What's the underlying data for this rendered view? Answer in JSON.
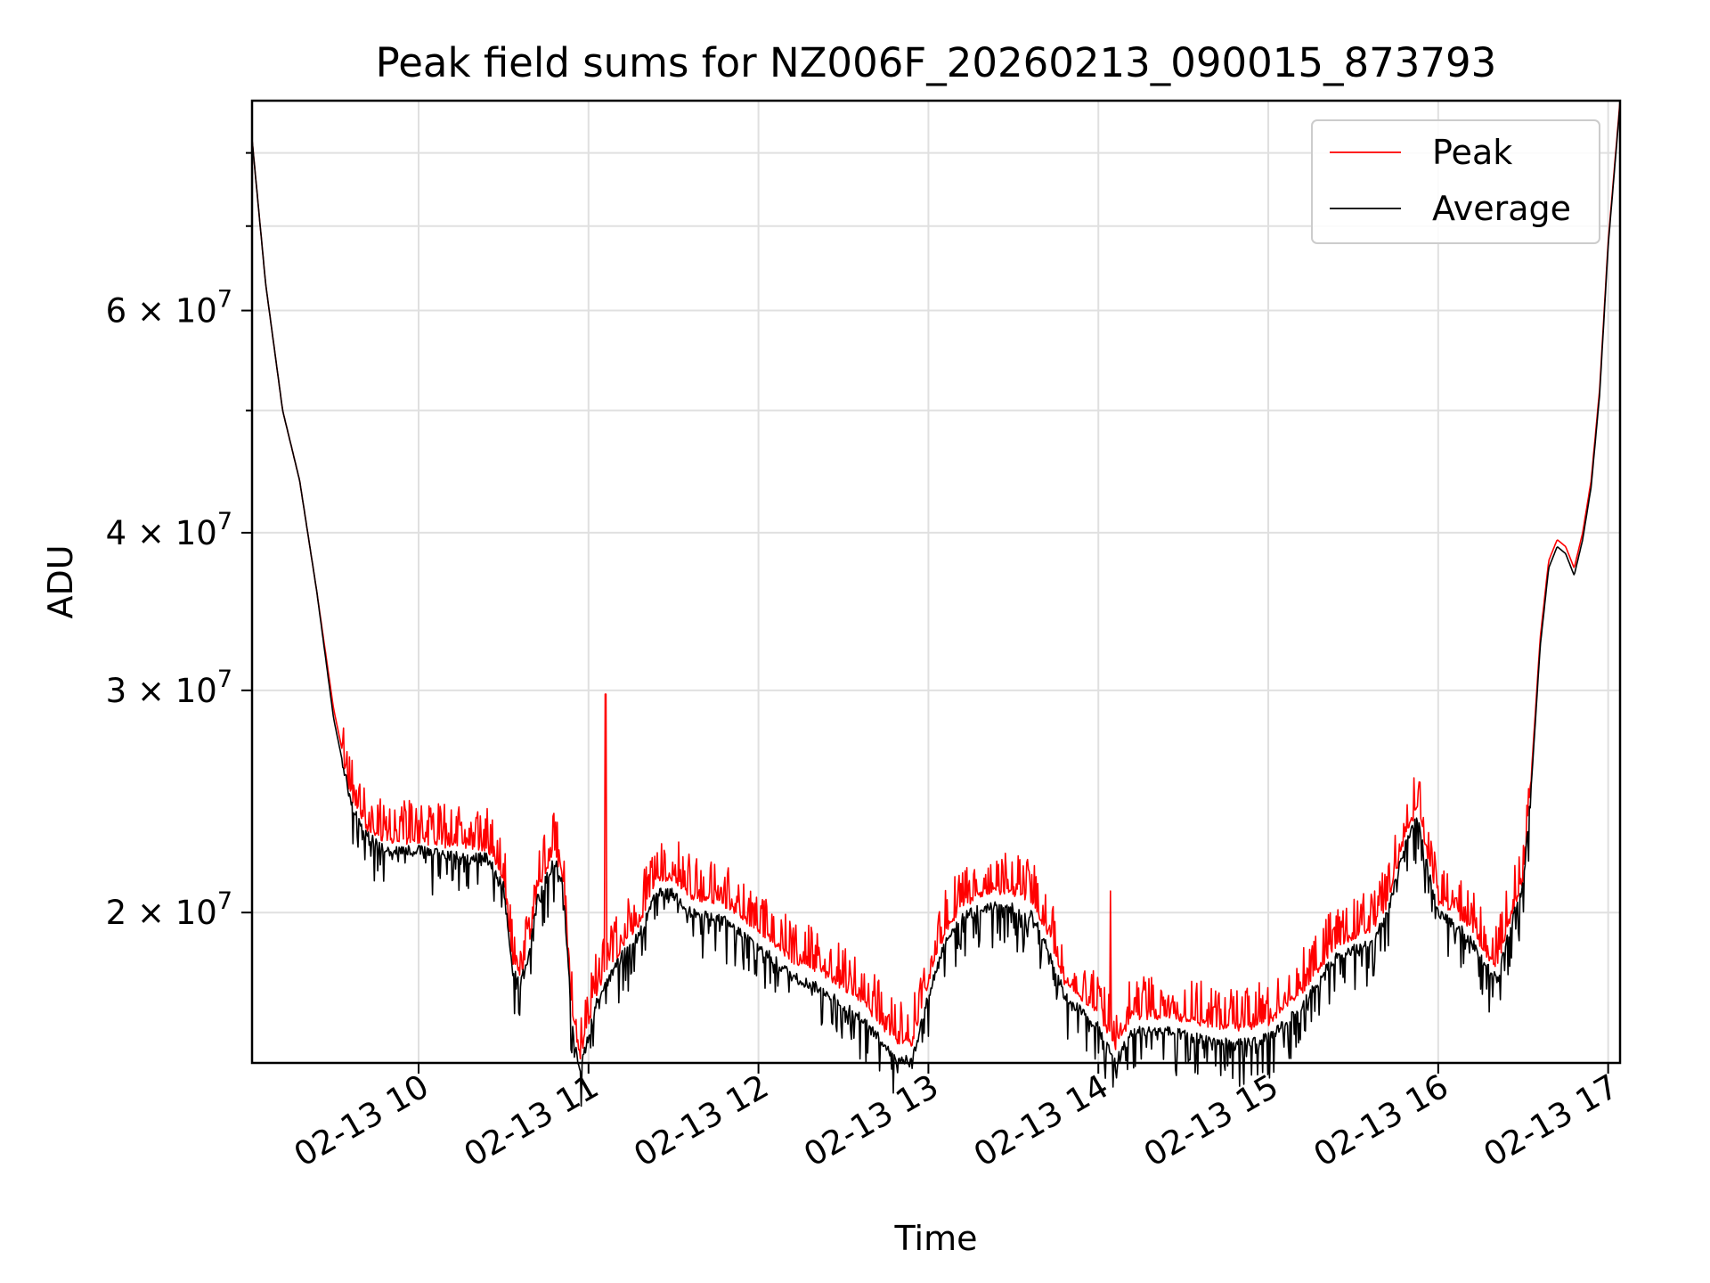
{
  "chart_data": {
    "type": "line",
    "title": "Peak field sums for NZ006F_20260213_090015_873793",
    "xlabel": "Time",
    "ylabel": "ADU",
    "yscale": "log",
    "xlim": [
      9.02,
      17.07
    ],
    "ylim": [
      15200000,
      88000000
    ],
    "x_ticks": [
      {
        "value": 10,
        "label": "02-13 10"
      },
      {
        "value": 11,
        "label": "02-13 11"
      },
      {
        "value": 12,
        "label": "02-13 12"
      },
      {
        "value": 13,
        "label": "02-13 13"
      },
      {
        "value": 14,
        "label": "02-13 14"
      },
      {
        "value": 15,
        "label": "02-13 15"
      },
      {
        "value": 16,
        "label": "02-13 16"
      },
      {
        "value": 17,
        "label": "02-13 17"
      }
    ],
    "y_ticks": [
      {
        "value": 20000000,
        "mantissa": "2",
        "exp": "7"
      },
      {
        "value": 30000000,
        "mantissa": "3",
        "exp": "7"
      },
      {
        "value": 40000000,
        "mantissa": "4",
        "exp": "7"
      },
      {
        "value": 60000000,
        "mantissa": "6",
        "exp": "7"
      }
    ],
    "y_minor_ticks": [
      50000000,
      70000000,
      80000000
    ],
    "grid": true,
    "legend_position": "top-right",
    "series": [
      {
        "name": "Peak",
        "color": "#ff0000",
        "x": [
          9.02,
          9.1,
          9.2,
          9.3,
          9.4,
          9.5,
          9.6,
          9.7,
          9.8,
          10.0,
          10.2,
          10.4,
          10.5,
          10.55,
          10.6,
          10.65,
          10.7,
          10.8,
          10.85,
          10.9,
          10.95,
          11.0,
          11.05,
          11.1,
          11.2,
          11.3,
          11.4,
          11.5,
          11.6,
          11.8,
          12.0,
          12.2,
          12.4,
          12.6,
          12.8,
          12.9,
          13.0,
          13.1,
          13.2,
          13.4,
          13.6,
          13.7,
          13.8,
          14.0,
          14.1,
          14.2,
          14.4,
          14.6,
          14.8,
          15.0,
          15.2,
          15.4,
          15.6,
          15.7,
          15.8,
          15.88,
          15.95,
          16.0,
          16.1,
          16.2,
          16.3,
          16.35,
          16.4,
          16.5,
          16.55,
          16.6,
          16.65,
          16.7,
          16.75,
          16.8,
          16.85,
          16.9,
          16.95,
          17.0,
          17.07
        ],
        "y": [
          82000000,
          63000000,
          50000000,
          44000000,
          36000000,
          29000000,
          25000000,
          23500000,
          23000000,
          23000000,
          22800000,
          22700000,
          21500000,
          18500000,
          18000000,
          19000000,
          21000000,
          22500000,
          21500000,
          17000000,
          15500000,
          16500000,
          17500000,
          18000000,
          19000000,
          19800000,
          21500000,
          21500000,
          20800000,
          20500000,
          19500000,
          18500000,
          18000000,
          17200000,
          16000000,
          15800000,
          17800000,
          19500000,
          20500000,
          21000000,
          20700000,
          19500000,
          17800000,
          16800000,
          15800000,
          16700000,
          16700000,
          16500000,
          16300000,
          16500000,
          17500000,
          19000000,
          19500000,
          20500000,
          23000000,
          24500000,
          22000000,
          20500000,
          20200000,
          19500000,
          18500000,
          18300000,
          19500000,
          21500000,
          26000000,
          33000000,
          38000000,
          39500000,
          39000000,
          37500000,
          40000000,
          44000000,
          52000000,
          68000000,
          88000000
        ]
      },
      {
        "name": "Average",
        "color": "#000000",
        "x": [
          9.02,
          9.1,
          9.2,
          9.3,
          9.4,
          9.5,
          9.6,
          9.7,
          9.8,
          10.0,
          10.2,
          10.4,
          10.5,
          10.55,
          10.6,
          10.65,
          10.7,
          10.8,
          10.85,
          10.9,
          10.95,
          11.0,
          11.05,
          11.1,
          11.2,
          11.3,
          11.4,
          11.5,
          11.6,
          11.8,
          12.0,
          12.2,
          12.4,
          12.6,
          12.8,
          12.9,
          13.0,
          13.1,
          13.2,
          13.4,
          13.6,
          13.7,
          13.8,
          14.0,
          14.1,
          14.2,
          14.4,
          14.6,
          14.8,
          15.0,
          15.2,
          15.4,
          15.6,
          15.7,
          15.8,
          15.88,
          15.95,
          16.0,
          16.1,
          16.2,
          16.3,
          16.35,
          16.4,
          16.5,
          16.55,
          16.6,
          16.65,
          16.7,
          16.75,
          16.8,
          16.85,
          16.9,
          16.95,
          17.0,
          17.07
        ],
        "y": [
          82000000,
          63000000,
          50000000,
          44000000,
          36000000,
          28500000,
          24500000,
          23000000,
          22400000,
          22400000,
          22200000,
          22100000,
          21000000,
          18000000,
          17600000,
          18500000,
          20500000,
          22000000,
          21000000,
          16500000,
          15000000,
          16000000,
          17000000,
          17500000,
          18500000,
          19200000,
          20700000,
          20700000,
          20000000,
          19700000,
          18800000,
          17800000,
          17300000,
          16500000,
          15400000,
          15200000,
          17200000,
          19000000,
          19900000,
          20300000,
          20000000,
          18800000,
          17200000,
          16200000,
          15200000,
          16100000,
          16100000,
          15900000,
          15700000,
          15900000,
          16900000,
          18500000,
          18900000,
          19900000,
          22500000,
          23800000,
          21300000,
          19900000,
          19600000,
          18900000,
          18000000,
          17700000,
          19000000,
          21000000,
          25500000,
          32500000,
          37500000,
          39000000,
          38500000,
          37000000,
          39500000,
          43500000,
          51500000,
          67500000,
          87500000
        ]
      }
    ]
  }
}
